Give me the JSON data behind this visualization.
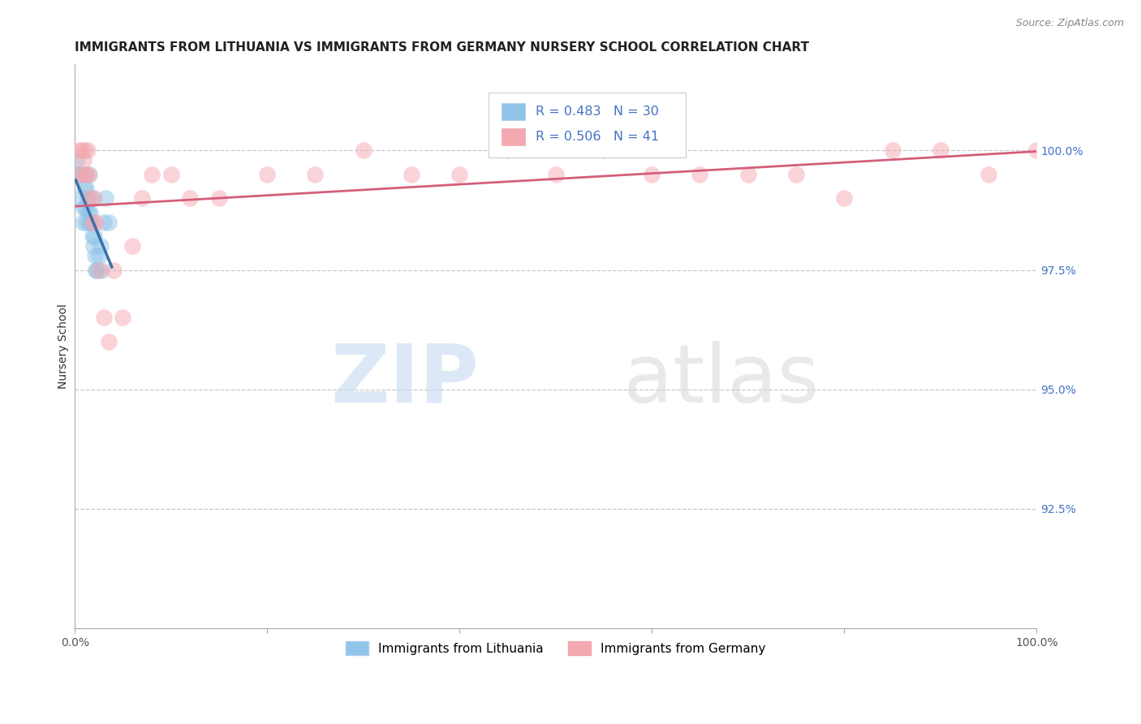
{
  "title": "IMMIGRANTS FROM LITHUANIA VS IMMIGRANTS FROM GERMANY NURSERY SCHOOL CORRELATION CHART",
  "source": "Source: ZipAtlas.com",
  "ylabel": "Nursery School",
  "xlim": [
    0.0,
    100.0
  ],
  "ylim": [
    90.0,
    101.8
  ],
  "yticks": [
    92.5,
    95.0,
    97.5,
    100.0
  ],
  "yticklabels": [
    "92.5%",
    "95.0%",
    "97.5%",
    "100.0%"
  ],
  "xticks": [
    0.0,
    20.0,
    40.0,
    60.0,
    80.0,
    100.0
  ],
  "xticklabels": [
    "0.0%",
    "",
    "",
    "",
    "",
    "100.0%"
  ],
  "legend_label1": "Immigrants from Lithuania",
  "legend_label2": "Immigrants from Germany",
  "R1": 0.483,
  "N1": 30,
  "R2": 0.506,
  "N2": 41,
  "color1": "#90c4e8",
  "color2": "#f4a8b0",
  "trendline1_color": "#3a6faa",
  "trendline2_color": "#d45f7a",
  "scatter1_x": [
    0.2,
    0.4,
    0.5,
    0.6,
    0.8,
    0.9,
    1.0,
    1.1,
    1.2,
    1.3,
    1.4,
    1.5,
    1.6,
    1.7,
    1.8,
    1.9,
    2.0,
    2.1,
    2.2,
    2.3,
    2.5,
    2.7,
    3.0,
    3.2,
    3.5,
    1.0,
    1.2,
    1.5,
    1.8,
    2.8
  ],
  "scatter1_y": [
    99.8,
    99.5,
    99.5,
    99.0,
    98.5,
    98.8,
    99.2,
    98.8,
    98.5,
    99.0,
    98.7,
    98.5,
    98.7,
    98.5,
    98.2,
    98.0,
    98.2,
    97.8,
    97.5,
    97.5,
    97.8,
    98.0,
    98.5,
    99.0,
    98.5,
    99.5,
    99.2,
    99.5,
    99.0,
    97.5
  ],
  "scatter2_x": [
    0.3,
    0.5,
    0.7,
    0.9,
    1.0,
    1.1,
    1.2,
    1.3,
    1.4,
    1.5,
    1.8,
    2.0,
    2.2,
    2.5,
    3.0,
    3.5,
    4.0,
    5.0,
    6.0,
    7.0,
    8.0,
    10.0,
    12.0,
    15.0,
    20.0,
    25.0,
    30.0,
    35.0,
    40.0,
    45.0,
    50.0,
    55.0,
    60.0,
    65.0,
    70.0,
    75.0,
    80.0,
    85.0,
    90.0,
    95.0,
    100.0
  ],
  "scatter2_y": [
    99.5,
    100.0,
    100.0,
    99.8,
    100.0,
    99.5,
    99.5,
    100.0,
    99.5,
    99.0,
    98.5,
    99.0,
    98.5,
    97.5,
    96.5,
    96.0,
    97.5,
    96.5,
    98.0,
    99.0,
    99.5,
    99.5,
    99.0,
    99.0,
    99.5,
    99.5,
    100.0,
    99.5,
    99.5,
    100.0,
    99.5,
    100.0,
    99.5,
    99.5,
    99.5,
    99.5,
    99.0,
    100.0,
    100.0,
    99.5,
    100.0
  ],
  "watermark_zip": "ZIP",
  "watermark_atlas": "atlas",
  "background_color": "#ffffff",
  "grid_color": "#c8c8c8",
  "title_fontsize": 11,
  "axis_label_fontsize": 10,
  "tick_fontsize": 10,
  "ytick_color": "#4472c4",
  "xtick_color": "#555555",
  "lone_blue_x": 1.8,
  "lone_blue_y": 97.3
}
